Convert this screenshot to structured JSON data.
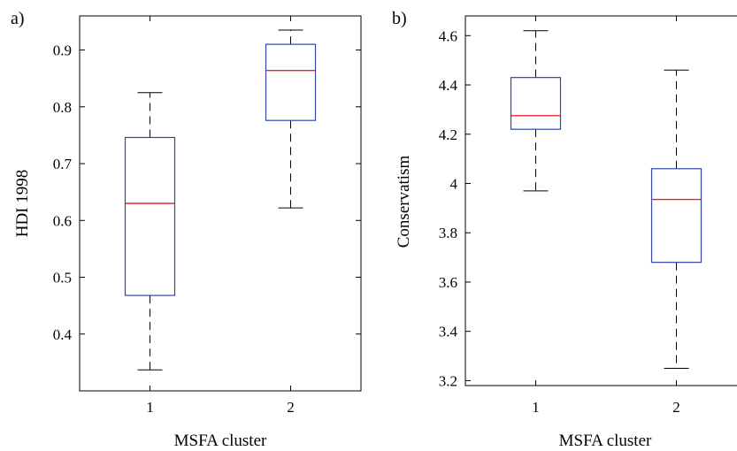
{
  "chart_data": [
    {
      "type": "box",
      "panel_label": "a)",
      "xlabel": "MSFA cluster",
      "ylabel": "HDI 1998",
      "ylim": [
        0.3,
        0.96
      ],
      "yticks": [
        "0.4",
        "0.5",
        "0.6",
        "0.7",
        "0.8",
        "0.9"
      ],
      "ytick_values": [
        0.4,
        0.5,
        0.6,
        0.7,
        0.8,
        0.9
      ],
      "categories": [
        "1",
        "2"
      ],
      "boxes": [
        {
          "min": 0.337,
          "q1": 0.468,
          "median": 0.63,
          "q3": 0.746,
          "max": 0.825
        },
        {
          "min": 0.622,
          "q1": 0.776,
          "median": 0.864,
          "q3": 0.91,
          "max": 0.935
        }
      ],
      "colors": {
        "box": "#3344aa",
        "median": "#e8242c",
        "whisker": "#000000"
      }
    },
    {
      "type": "box",
      "panel_label": "b)",
      "xlabel": "MSFA cluster",
      "ylabel": "Conservatism",
      "ylim": [
        3.18,
        4.68
      ],
      "yticks": [
        "3.2",
        "3.4",
        "3.6",
        "3.8",
        "4",
        "4.2",
        "4.4",
        "4.6"
      ],
      "ytick_values": [
        3.2,
        3.4,
        3.6,
        3.8,
        4.0,
        4.2,
        4.4,
        4.6
      ],
      "categories": [
        "1",
        "2"
      ],
      "boxes": [
        {
          "min": 3.97,
          "q1": 4.22,
          "median": 4.275,
          "q3": 4.43,
          "max": 4.62
        },
        {
          "min": 3.25,
          "q1": 3.68,
          "median": 3.935,
          "q3": 4.06,
          "max": 4.46
        }
      ],
      "colors": {
        "box": "#3344aa",
        "median": "#e8242c",
        "whisker": "#000000"
      }
    }
  ]
}
